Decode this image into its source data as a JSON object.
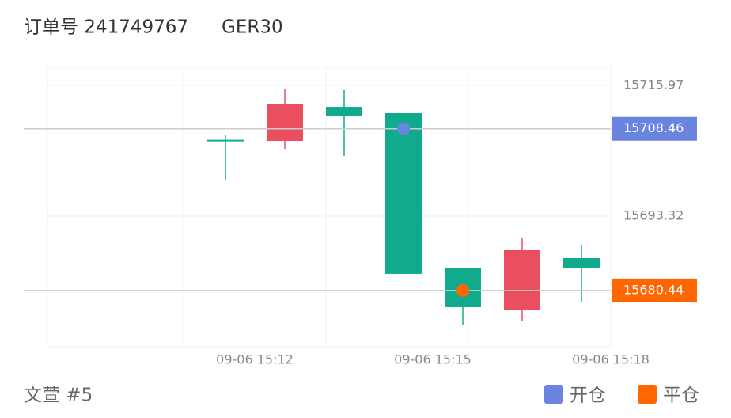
{
  "header": {
    "order_label": "订单号 241749767",
    "symbol": "GER30"
  },
  "chart_data": {
    "type": "candlestick",
    "up_color": "#e94f5f",
    "down_color": "#10ab8c",
    "candles": [
      {
        "open": 15706.55,
        "close": 15706.45,
        "high": 15707.32,
        "low": 15699.5
      },
      {
        "open": 15706.36,
        "close": 15712.81,
        "high": 15715.28,
        "low": 15704.99
      },
      {
        "open": 15712.26,
        "close": 15710.62,
        "high": 15715.15,
        "low": 15703.75
      },
      {
        "open": 15711.17,
        "close": 15683.31,
        "high": 15711.17,
        "low": 15683.31
      },
      {
        "open": 15684.4,
        "close": 15677.54,
        "high": 15684.4,
        "low": 15674.52
      },
      {
        "open": 15676.99,
        "close": 15687.42,
        "high": 15689.48,
        "low": 15675.06
      },
      {
        "open": 15686.05,
        "close": 15684.4,
        "high": 15688.24,
        "low": 15678.5
      }
    ],
    "ylim": [
      15670.67,
      15719.13
    ],
    "yticks": [
      15715.97,
      15693.32
    ],
    "x_labels": [
      "09-06 15:12",
      "09-06 15:15",
      "09-06 15:18"
    ],
    "markers": [
      {
        "name": "开仓",
        "color": "#6b84e0",
        "candle": 3,
        "value": 15708.46
      },
      {
        "name": "平仓",
        "color": "#ff6600",
        "candle": 4,
        "value": 15680.44
      }
    ]
  },
  "footer": {
    "account": "文萱 #5"
  }
}
